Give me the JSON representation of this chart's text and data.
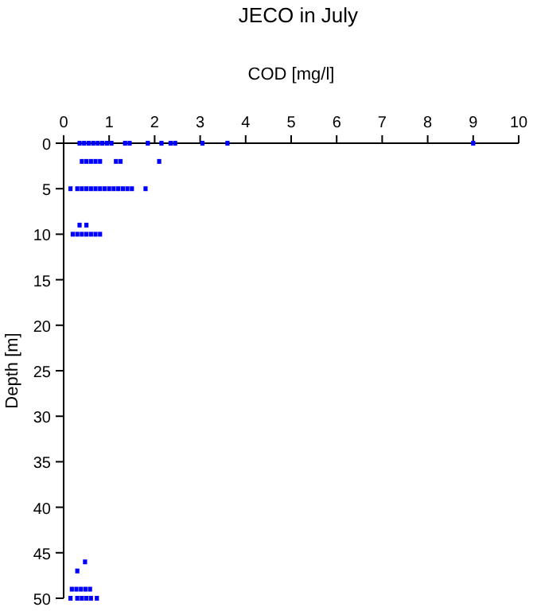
{
  "chart_data": {
    "type": "scatter",
    "title": "JECO in July",
    "xlabel": "COD [mg/l]",
    "ylabel": "Depth [m]",
    "xlim": [
      0,
      10
    ],
    "xticks": [
      0,
      1,
      2,
      3,
      4,
      5,
      6,
      7,
      8,
      9,
      10
    ],
    "ylim": [
      50,
      0
    ],
    "yticks": [
      0,
      5,
      10,
      15,
      20,
      25,
      30,
      35,
      40,
      45,
      50
    ],
    "grid": false,
    "marker": "square",
    "series": [
      {
        "color": "#0000ff",
        "x": [
          0.35,
          0.45,
          0.55,
          0.65,
          0.75,
          0.85,
          0.95,
          1.05,
          1.35,
          1.45,
          1.85,
          2.15,
          2.35,
          2.45,
          3.05,
          3.6,
          9.0,
          0.4,
          0.5,
          0.6,
          0.7,
          0.8,
          1.15,
          1.25,
          2.1,
          0.15,
          0.3,
          0.4,
          0.5,
          0.6,
          0.7,
          0.8,
          0.9,
          1.0,
          1.1,
          1.2,
          1.3,
          1.4,
          1.5,
          1.8,
          0.35,
          0.5,
          0.2,
          0.3,
          0.4,
          0.5,
          0.6,
          0.7,
          0.8,
          0.47,
          0.3,
          0.18,
          0.28,
          0.38,
          0.48,
          0.58,
          0.15,
          0.3,
          0.4,
          0.5,
          0.6,
          0.73
        ],
        "values": [
          0,
          0,
          0,
          0,
          0,
          0,
          0,
          0,
          0,
          0,
          0,
          0,
          0,
          0,
          0,
          0,
          0,
          2,
          2,
          2,
          2,
          2,
          2,
          2,
          2,
          5,
          5,
          5,
          5,
          5,
          5,
          5,
          5,
          5,
          5,
          5,
          5,
          5,
          5,
          5,
          9,
          9,
          10,
          10,
          10,
          10,
          10,
          10,
          10,
          46,
          47,
          49,
          49,
          49,
          49,
          49,
          50,
          50,
          50,
          50,
          50,
          50
        ]
      }
    ]
  }
}
